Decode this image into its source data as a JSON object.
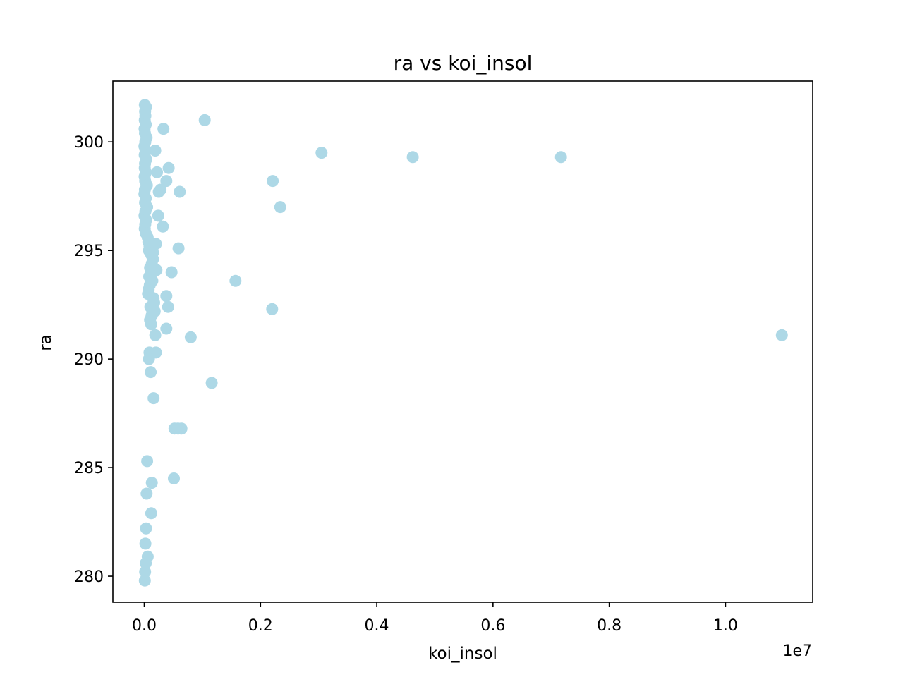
{
  "chart_data": {
    "type": "scatter",
    "title": "ra vs koi_insol",
    "xlabel": "koi_insol",
    "ylabel": "ra",
    "x_offset_label": "1e7",
    "xlim": [
      -540000,
      11500000
    ],
    "ylim": [
      278.8,
      302.8
    ],
    "x_ticks": [
      0,
      2000000,
      4000000,
      6000000,
      8000000,
      10000000
    ],
    "x_tick_labels": [
      "0.0",
      "0.2",
      "0.4",
      "0.6",
      "0.8",
      "1.0"
    ],
    "y_ticks": [
      280,
      285,
      290,
      295,
      300
    ],
    "y_tick_labels": [
      "280",
      "285",
      "290",
      "295",
      "300"
    ],
    "grid": false,
    "marker_color": "#add8e6",
    "series": [
      {
        "x": [
          10000,
          30000,
          15000,
          20000,
          8000,
          25000,
          5000,
          12000,
          40000,
          18000,
          3000,
          22000,
          7000,
          35000,
          14000,
          9000,
          28000,
          6000,
          16000,
          45000,
          11000,
          2000,
          26000,
          13000,
          50000,
          19000,
          4000,
          32000,
          17000,
          8500,
          24000,
          60000,
          70000,
          90000,
          80000,
          120000,
          150000,
          130000,
          100000,
          110000,
          85000,
          140000,
          95000,
          75000,
          65000,
          160000,
          170000,
          105000,
          180000,
          125000,
          330000,
          1040000,
          3050000,
          4620000,
          7170000,
          190000,
          420000,
          220000,
          380000,
          2210000,
          250000,
          280000,
          610000,
          2340000,
          240000,
          320000,
          200000,
          170000,
          590000,
          150000,
          210000,
          470000,
          1570000,
          380000,
          160000,
          410000,
          2200000,
          140000,
          130000,
          380000,
          190000,
          800000,
          10970000,
          120000,
          100000,
          90000,
          1160000,
          200000,
          80000,
          110000,
          520000,
          580000,
          640000,
          160000,
          510000,
          130000,
          120000,
          50000,
          40000,
          30000,
          60000,
          20000,
          10000,
          15000,
          25000
        ],
        "y": [
          301.7,
          301.6,
          301.4,
          301.2,
          301.0,
          300.8,
          300.6,
          300.4,
          300.2,
          300.0,
          299.8,
          299.6,
          299.4,
          299.2,
          299.0,
          298.8,
          298.6,
          298.4,
          298.2,
          298.0,
          297.8,
          297.6,
          297.4,
          297.2,
          297.0,
          296.8,
          296.6,
          296.4,
          296.2,
          296.0,
          295.8,
          295.6,
          295.4,
          295.2,
          295.0,
          294.8,
          294.6,
          294.4,
          294.2,
          294.0,
          293.8,
          293.6,
          293.4,
          293.2,
          293.0,
          292.8,
          292.6,
          292.4,
          292.2,
          292.0,
          300.6,
          301.0,
          299.5,
          299.3,
          299.3,
          299.6,
          298.8,
          298.6,
          298.2,
          298.2,
          297.7,
          297.8,
          297.7,
          297.0,
          296.6,
          296.1,
          295.3,
          295.3,
          295.1,
          294.9,
          294.1,
          294.0,
          293.6,
          292.9,
          292.7,
          292.4,
          292.3,
          292.2,
          292.0,
          291.4,
          291.1,
          291.0,
          291.1,
          291.6,
          291.8,
          290.3,
          288.9,
          290.3,
          290.0,
          289.4,
          286.8,
          286.8,
          286.8,
          288.2,
          284.5,
          284.3,
          282.9,
          285.3,
          283.8,
          282.2,
          280.9,
          281.5,
          279.8,
          280.2,
          280.6
        ]
      }
    ]
  }
}
